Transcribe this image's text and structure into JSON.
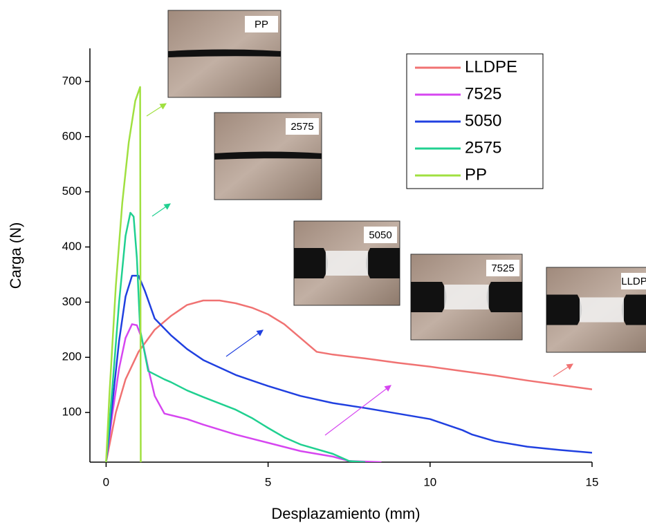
{
  "chart_data": {
    "type": "line",
    "xlabel": "Desplazamiento (mm)",
    "ylabel": "Carga (N)",
    "xlim": [
      -0.5,
      15
    ],
    "ylim": [
      10,
      760
    ],
    "xticks": [
      0,
      5,
      10,
      15
    ],
    "yticks": [
      100,
      200,
      300,
      400,
      500,
      600,
      700
    ],
    "legend": "upper right",
    "annotations": [
      "PP",
      "2575",
      "5050",
      "7525",
      "LLDPE"
    ],
    "series": [
      {
        "name": "LLDPE",
        "color": "#f07272",
        "x": [
          0,
          0.3,
          0.6,
          1,
          1.5,
          2,
          2.5,
          3,
          3.5,
          4,
          4.5,
          5,
          5.5,
          6,
          6.5,
          7,
          8,
          9,
          10,
          11,
          12,
          13,
          14,
          15
        ],
        "values": [
          10,
          100,
          160,
          210,
          250,
          275,
          295,
          303,
          303,
          298,
          290,
          278,
          260,
          235,
          210,
          205,
          198,
          190,
          183,
          175,
          167,
          158,
          150,
          142
        ]
      },
      {
        "name": "7525",
        "color": "#d646f0",
        "x": [
          0,
          0.2,
          0.4,
          0.6,
          0.8,
          0.95,
          1.1,
          1.3,
          1.5,
          1.8,
          2.5,
          3,
          4,
          5,
          6,
          7,
          7.5,
          8.5
        ],
        "values": [
          10,
          100,
          180,
          235,
          260,
          258,
          235,
          180,
          130,
          98,
          88,
          78,
          60,
          45,
          30,
          20,
          12,
          10
        ]
      },
      {
        "name": "5050",
        "color": "#2040e0",
        "x": [
          0,
          0.2,
          0.4,
          0.6,
          0.8,
          1,
          1.2,
          1.5,
          2,
          2.5,
          3,
          4,
          5,
          6,
          7,
          8,
          9,
          10,
          10.5,
          11,
          11.3,
          12,
          13,
          14,
          15
        ],
        "values": [
          10,
          120,
          230,
          310,
          348,
          348,
          320,
          270,
          240,
          215,
          195,
          168,
          148,
          130,
          117,
          108,
          98,
          88,
          78,
          68,
          60,
          48,
          38,
          32,
          27
        ]
      },
      {
        "name": "2575",
        "color": "#20d090",
        "x": [
          0,
          0.2,
          0.4,
          0.6,
          0.75,
          0.85,
          0.95,
          1.05,
          1.3,
          1.8,
          2,
          2.5,
          3,
          4,
          4.5,
          5,
          5.5,
          6,
          7,
          7.5,
          8
        ],
        "values": [
          10,
          150,
          300,
          420,
          462,
          455,
          380,
          250,
          175,
          160,
          155,
          140,
          128,
          105,
          90,
          72,
          55,
          42,
          25,
          12,
          10
        ]
      },
      {
        "name": "PP",
        "color": "#a0e040",
        "x": [
          0,
          0.1,
          0.3,
          0.5,
          0.7,
          0.9,
          1.05,
          1.07
        ],
        "values": [
          10,
          130,
          330,
          480,
          590,
          665,
          690,
          10
        ]
      }
    ]
  }
}
